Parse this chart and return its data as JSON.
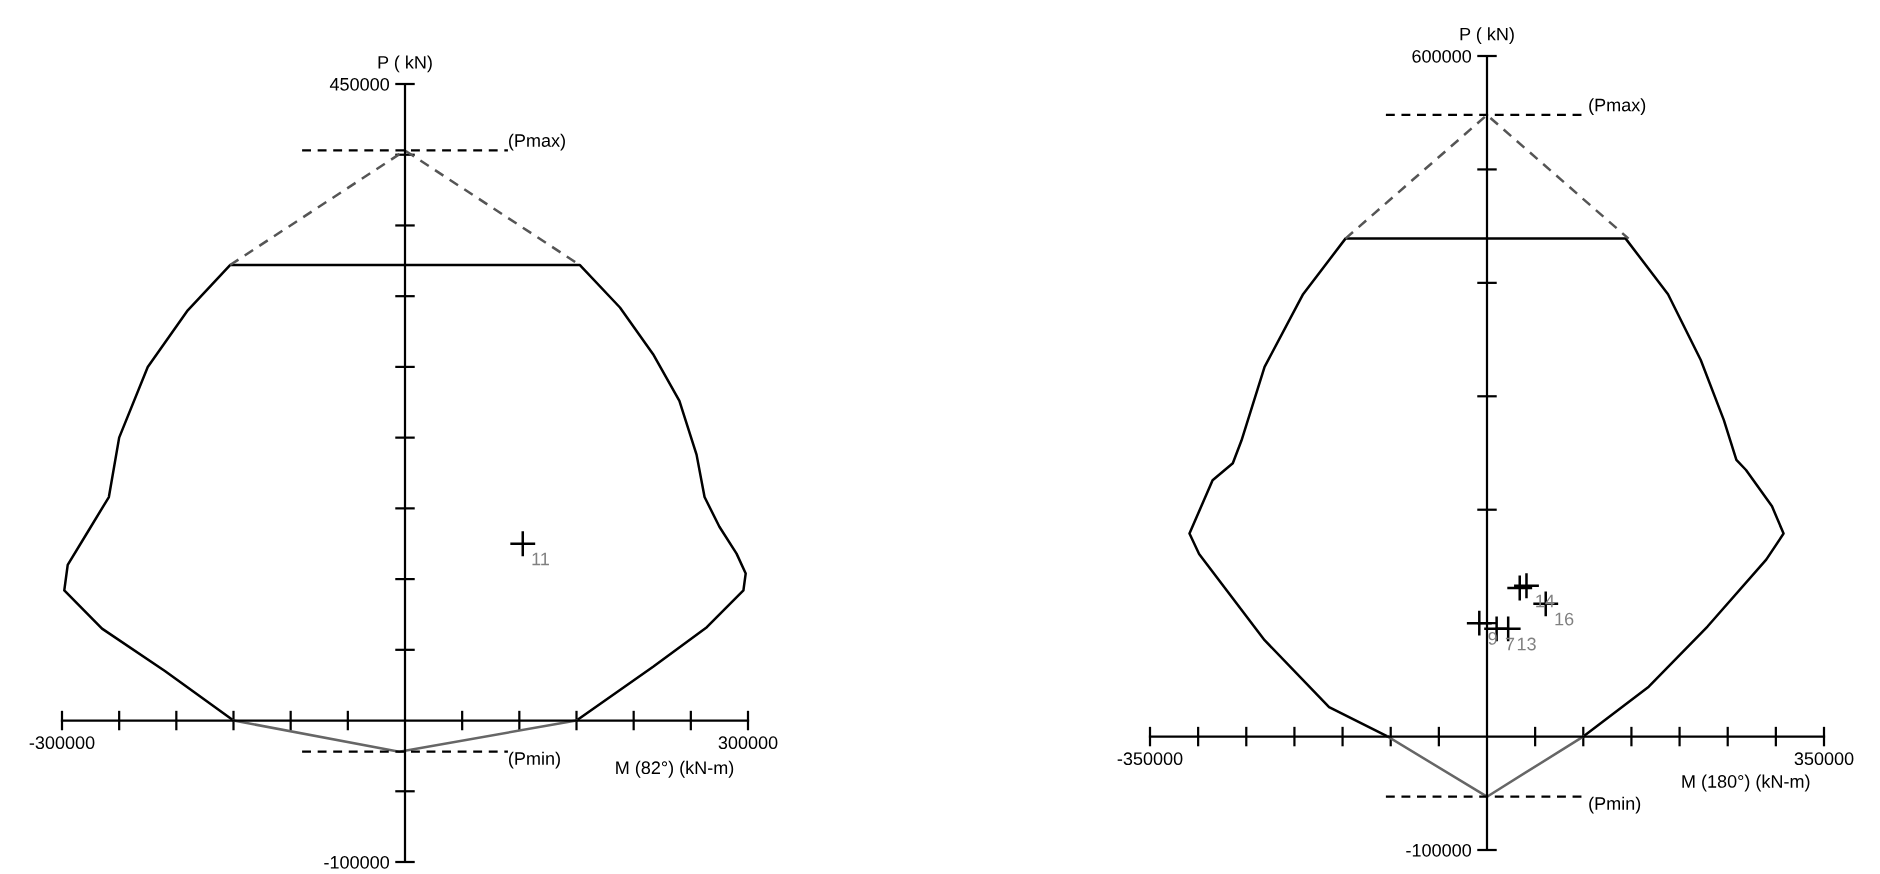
{
  "chart_data": [
    {
      "type": "line",
      "xlabel": "M (82°) (kN-m)",
      "ylabel": "P ( kN)",
      "xlim": [
        -300000,
        300000
      ],
      "ylim": [
        -100000,
        450000
      ],
      "xticks": [
        -300000,
        {
          "value": -250000,
          "label": null
        },
        {
          "value": -200000,
          "label": null
        },
        {
          "value": -150000,
          "label": null
        },
        {
          "value": -100000,
          "label": null
        },
        {
          "value": -50000,
          "label": null
        },
        {
          "value": 50000,
          "label": null
        },
        {
          "value": 100000,
          "label": null
        },
        {
          "value": 150000,
          "label": null
        },
        {
          "value": 200000,
          "label": null
        },
        {
          "value": 250000,
          "label": null
        },
        300000
      ],
      "yticks": [
        -100000,
        {
          "value": -50000,
          "label": null
        },
        {
          "value": 50000,
          "label": null
        },
        {
          "value": 100000,
          "label": null
        },
        {
          "value": 150000,
          "label": null
        },
        {
          "value": 200000,
          "label": null
        },
        {
          "value": 250000,
          "label": null
        },
        {
          "value": 300000,
          "label": null
        },
        {
          "value": 350000,
          "label": null
        },
        {
          "value": 400000,
          "label": null
        },
        450000
      ],
      "grid": false,
      "annotations": [
        {
          "text": "11",
          "x": 103000,
          "y": 125000
        }
      ],
      "ref_lines": [
        {
          "axis": "y",
          "value": 403000,
          "label": "(Pmax)",
          "line_style": "dashed",
          "color": "#000000"
        },
        {
          "axis": "y",
          "value": -22000,
          "label": "(Pmin)",
          "line_style": "dashed",
          "color": "#000000"
        }
      ],
      "series": [
        {
          "color": "#000000",
          "line_style": "solid",
          "x": [
            150000,
            217000,
            264000,
            296000,
            298000,
            290000,
            275000,
            262000,
            255000,
            240000,
            217000,
            188000,
            153000,
            -153000,
            -190000,
            -225000,
            -250000,
            -259000,
            -277000,
            -295000,
            -298000,
            -265000,
            -210000,
            -150000
          ],
          "values": [
            0,
            38000,
            66000,
            92000,
            104000,
            118000,
            137000,
            158000,
            188000,
            226000,
            259000,
            292000,
            322000,
            322000,
            290000,
            250000,
            200000,
            158000,
            134000,
            110000,
            92000,
            65000,
            35000,
            0
          ]
        },
        {
          "color": "#666666",
          "line_style": "solid",
          "x": [
            -150000,
            -5000,
            150000
          ],
          "values": [
            0,
            -22000,
            0
          ]
        },
        {
          "color": "#555555",
          "line_style": "dashed",
          "x": [
            -153000,
            0,
            153000
          ],
          "values": [
            322000,
            403000,
            322000
          ]
        },
        {
          "type": "scatter",
          "color": "#000000",
          "marker": "cross",
          "x": [
            103000
          ],
          "values": [
            125000
          ]
        }
      ]
    },
    {
      "type": "line",
      "xlabel": "M (180°) (kN-m)",
      "ylabel": "P ( kN)",
      "xlim": [
        -350000,
        350000
      ],
      "ylim": [
        -100000,
        600000
      ],
      "xticks": [
        -350000,
        {
          "value": -300000,
          "label": null
        },
        {
          "value": -250000,
          "label": null
        },
        {
          "value": -200000,
          "label": null
        },
        {
          "value": -150000,
          "label": null
        },
        {
          "value": -100000,
          "label": null
        },
        {
          "value": -50000,
          "label": null
        },
        {
          "value": 50000,
          "label": null
        },
        {
          "value": 100000,
          "label": null
        },
        {
          "value": 150000,
          "label": null
        },
        {
          "value": 200000,
          "label": null
        },
        {
          "value": 250000,
          "label": null
        },
        {
          "value": 300000,
          "label": null
        },
        350000
      ],
      "yticks": [
        -100000,
        {
          "value": 100000,
          "label": null
        },
        {
          "value": 200000,
          "label": null
        },
        {
          "value": 300000,
          "label": null
        },
        {
          "value": 400000,
          "label": null
        },
        {
          "value": 500000,
          "label": null
        },
        600000
      ],
      "grid": false,
      "annotations": [
        {
          "text": "9",
          "x": -8000,
          "y": 100000
        },
        {
          "text": "7",
          "x": 10000,
          "y": 95000
        },
        {
          "text": "13",
          "x": 22000,
          "y": 95000
        },
        {
          "text": "14",
          "x": 41000,
          "y": 133000
        },
        {
          "text": "16",
          "x": 61000,
          "y": 117000
        }
      ],
      "ref_lines": [
        {
          "axis": "y",
          "value": 548000,
          "label": "(Pmax)",
          "line_style": "dashed",
          "color": "#000000"
        },
        {
          "axis": "y",
          "value": -53000,
          "label": "(Pmin)",
          "line_style": "dashed",
          "color": "#000000"
        }
      ],
      "series": [
        {
          "color": "#000000",
          "line_style": "solid",
          "x": [
            100000,
            168000,
            229000,
            290000,
            308000,
            296000,
            269000,
            259000,
            246000,
            222000,
            188000,
            144000,
            -147000,
            -191000,
            -231000,
            -255000,
            -264000,
            -285000,
            -309000,
            -299000,
            -231000,
            -164000,
            -103000
          ],
          "values": [
            0,
            44000,
            97000,
            156000,
            179000,
            203000,
            235000,
            244000,
            279000,
            332000,
            390000,
            439000,
            439000,
            390000,
            326000,
            261000,
            241000,
            226000,
            179000,
            161000,
            85000,
            26000,
            0
          ]
        },
        {
          "color": "#666666",
          "line_style": "solid",
          "x": [
            -103000,
            0,
            100000
          ],
          "values": [
            0,
            -53000,
            0
          ]
        },
        {
          "color": "#555555",
          "line_style": "dashed",
          "x": [
            -147000,
            0,
            147000
          ],
          "values": [
            439000,
            548000,
            439000
          ]
        },
        {
          "type": "scatter",
          "color": "#000000",
          "marker": "cross",
          "x": [
            -8000,
            10000,
            22000,
            34000,
            41000,
            61000
          ],
          "values": [
            100000,
            95000,
            95000,
            131000,
            133000,
            117000
          ]
        }
      ]
    }
  ]
}
